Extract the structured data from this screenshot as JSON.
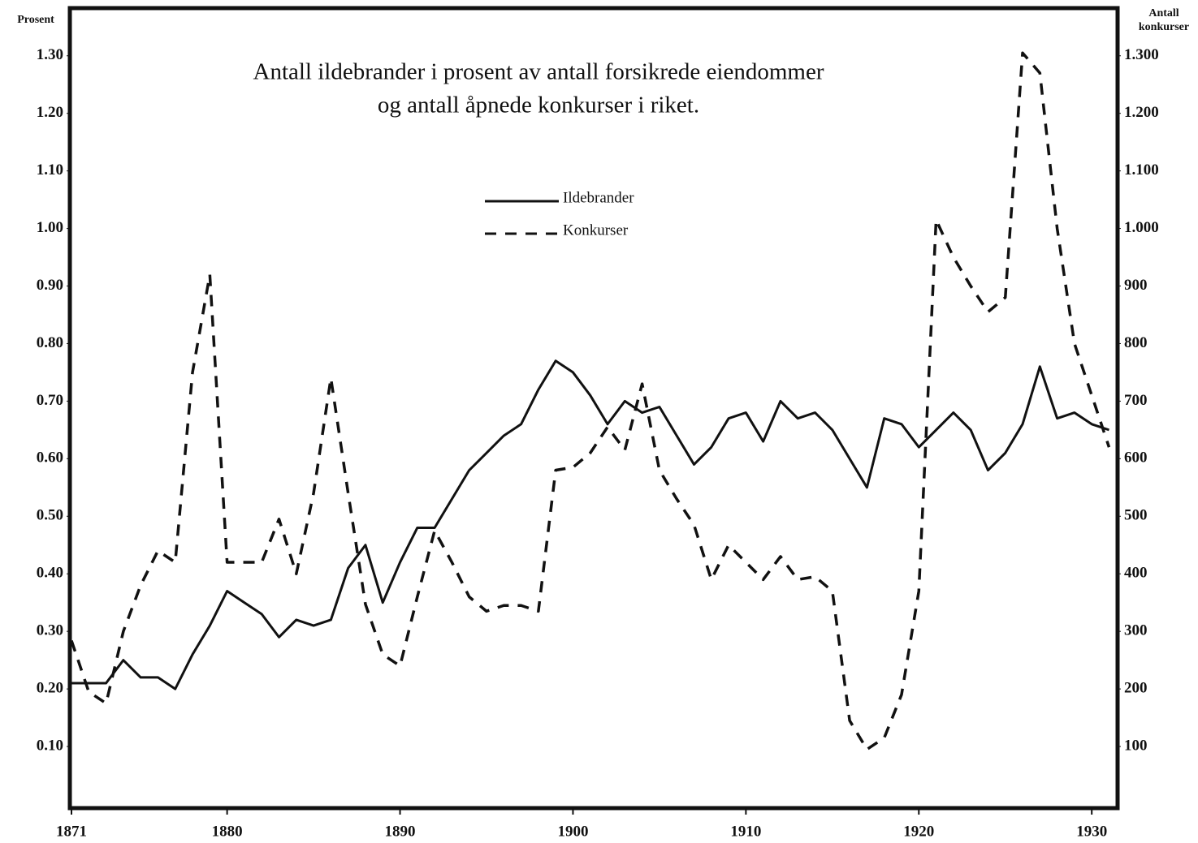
{
  "chart_data": {
    "type": "line",
    "title": [
      "Antall ildebrander i prosent av antall forsikrede eiendommer",
      "og antall åpnede konkurser i riket."
    ],
    "y_label": "Prosent",
    "y2_label": "Antall konkurser",
    "x": [
      1871,
      1872,
      1873,
      1874,
      1875,
      1876,
      1877,
      1878,
      1879,
      1880,
      1881,
      1882,
      1883,
      1884,
      1885,
      1886,
      1887,
      1888,
      1889,
      1890,
      1891,
      1892,
      1893,
      1894,
      1895,
      1896,
      1897,
      1898,
      1899,
      1900,
      1901,
      1902,
      1903,
      1904,
      1905,
      1906,
      1907,
      1908,
      1909,
      1910,
      1911,
      1912,
      1913,
      1914,
      1915,
      1916,
      1917,
      1918,
      1919,
      1920,
      1921,
      1922,
      1923,
      1924,
      1925,
      1926,
      1927,
      1928,
      1929,
      1930,
      1931
    ],
    "xlim": [
      1871,
      1931.4
    ],
    "xticks": [
      1871,
      1880,
      1890,
      1900,
      1910,
      1920,
      1930
    ],
    "ylim": [
      0,
      1.38
    ],
    "yticks": [
      {
        "value": 0.1,
        "label": "0.10"
      },
      {
        "value": 0.2,
        "label": "0.20"
      },
      {
        "value": 0.3,
        "label": "0.30"
      },
      {
        "value": 0.4,
        "label": "0.40"
      },
      {
        "value": 0.5,
        "label": "0.50"
      },
      {
        "value": 0.6,
        "label": "0.60"
      },
      {
        "value": 0.7,
        "label": "0.70"
      },
      {
        "value": 0.8,
        "label": "0.80"
      },
      {
        "value": 0.9,
        "label": "0.90"
      },
      {
        "value": 1.0,
        "label": "1.00"
      },
      {
        "value": 1.1,
        "label": "1.10"
      },
      {
        "value": 1.2,
        "label": "1.20"
      },
      {
        "value": 1.3,
        "label": "1.30"
      }
    ],
    "y2lim": [
      0,
      1380
    ],
    "y2ticks": [
      100,
      200,
      300,
      400,
      500,
      600,
      700,
      800,
      900,
      {
        "value": 1000,
        "label": "1.000"
      },
      {
        "value": 1100,
        "label": "1.100"
      },
      {
        "value": 1200,
        "label": "1.200"
      },
      {
        "value": 1300,
        "label": "1.300"
      }
    ],
    "series": [
      {
        "name": "Ildebrander",
        "color": "#111111",
        "style": "solid",
        "values": [
          0.21,
          0.21,
          0.21,
          0.25,
          0.22,
          0.22,
          0.2,
          0.26,
          0.31,
          0.37,
          0.35,
          0.33,
          0.29,
          0.32,
          0.31,
          0.32,
          0.41,
          0.45,
          0.35,
          0.42,
          0.48,
          0.48,
          0.53,
          0.58,
          0.61,
          0.64,
          0.66,
          0.72,
          0.77,
          0.75,
          0.71,
          0.66,
          0.7,
          0.68,
          0.69,
          0.64,
          0.59,
          0.62,
          0.67,
          0.68,
          0.63,
          0.7,
          0.67,
          0.68,
          0.65,
          0.6,
          0.55,
          0.67,
          0.66,
          0.62,
          0.65,
          0.68,
          0.65,
          0.58,
          0.61,
          0.66,
          0.76,
          0.67,
          0.68,
          0.66,
          0.65
        ]
      },
      {
        "name": "Konkurser",
        "color": "#111111",
        "style": "dashed",
        "axis": "y2",
        "values": [
          284,
          195,
          175,
          300,
          380,
          440,
          420,
          750,
          920,
          420,
          420,
          420,
          495,
          400,
          540,
          740,
          540,
          347,
          260,
          240,
          360,
          475,
          420,
          360,
          335,
          345,
          345,
          335,
          580,
          585,
          610,
          655,
          615,
          730,
          580,
          530,
          485,
          390,
          450,
          420,
          390,
          430,
          390,
          395,
          370,
          145,
          95,
          115,
          190,
          370,
          1015,
          950,
          900,
          855,
          880,
          1305,
          1270,
          1000,
          800,
          710,
          620
        ]
      }
    ]
  }
}
